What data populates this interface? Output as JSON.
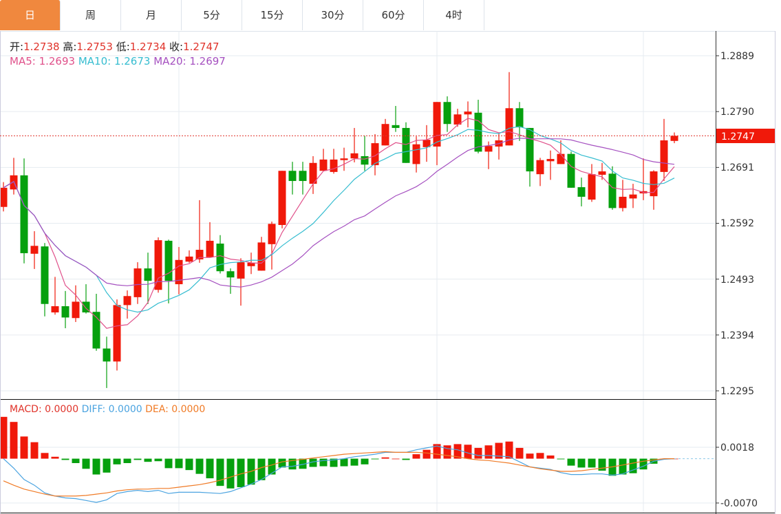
{
  "tabs": [
    {
      "label": "日",
      "active": true
    },
    {
      "label": "周"
    },
    {
      "label": "月"
    },
    {
      "label": "5分"
    },
    {
      "label": "15分"
    },
    {
      "label": "30分"
    },
    {
      "label": "60分"
    },
    {
      "label": "4时"
    }
  ],
  "ohlc_info": {
    "open_label": "开:",
    "open": "1.2738",
    "high_label": "高:",
    "high": "1.2753",
    "low_label": "低:",
    "low": "1.2734",
    "close_label": "收:",
    "close": "1.2747"
  },
  "ma_info": {
    "ma5": "MA5: 1.2693",
    "ma10": "MA10: 1.2673",
    "ma20": "MA20: 1.2697"
  },
  "macd_info": {
    "macd": "MACD: 0.0000",
    "diff": "DIFF: 0.0000",
    "dea": "DEA: 0.0000"
  },
  "colors": {
    "up": "#f0190a",
    "down": "#06a00e",
    "ma5": "#e0508a",
    "ma10": "#36bdd0",
    "ma20": "#a550c0",
    "diff": "#4aa3e0",
    "dea": "#f07a25",
    "tab_active": "#f0883e"
  },
  "chart_data": [
    {
      "type": "candlestick",
      "title": "",
      "y_ticks": [
        "1.2889",
        "1.2790",
        "1.2691",
        "1.2592",
        "1.2493",
        "1.2394",
        "1.2295"
      ],
      "ylim": [
        1.2295,
        1.2889
      ],
      "last_price_label": "1.2747",
      "grid": true,
      "ohlc": [
        [
          1.2621,
          1.2665,
          1.2613,
          1.2655
        ],
        [
          1.2652,
          1.2708,
          1.2643,
          1.2677
        ],
        [
          1.2677,
          1.2707,
          1.2521,
          1.2539
        ],
        [
          1.2538,
          1.2578,
          1.2511,
          1.2552
        ],
        [
          1.2551,
          1.2557,
          1.2427,
          1.2449
        ],
        [
          1.2434,
          1.2497,
          1.243,
          1.2445
        ],
        [
          1.2445,
          1.2472,
          1.2406,
          1.2425
        ],
        [
          1.2424,
          1.2482,
          1.2417,
          1.2453
        ],
        [
          1.2453,
          1.2484,
          1.2432,
          1.2434
        ],
        [
          1.2435,
          1.2467,
          1.2366,
          1.237
        ],
        [
          1.237,
          1.2391,
          1.23,
          1.2347
        ],
        [
          1.2347,
          1.2457,
          1.2331,
          1.2447
        ],
        [
          1.2447,
          1.2473,
          1.2423,
          1.2463
        ],
        [
          1.2461,
          1.2523,
          1.2449,
          1.2512
        ],
        [
          1.2512,
          1.254,
          1.2449,
          1.249
        ],
        [
          1.2474,
          1.2567,
          1.2469,
          1.2562
        ],
        [
          1.2561,
          1.2563,
          1.245,
          1.249
        ],
        [
          1.2484,
          1.255,
          1.2466,
          1.2527
        ],
        [
          1.2524,
          1.2544,
          1.2522,
          1.2533
        ],
        [
          1.2528,
          1.2633,
          1.2522,
          1.2545
        ],
        [
          1.2532,
          1.2594,
          1.2532,
          1.2561
        ],
        [
          1.2556,
          1.2571,
          1.2503,
          1.2507
        ],
        [
          1.2507,
          1.2512,
          1.2467,
          1.2496
        ],
        [
          1.2494,
          1.253,
          1.2446,
          1.2523
        ],
        [
          1.2516,
          1.254,
          1.2502,
          1.2522
        ],
        [
          1.2508,
          1.2568,
          1.2508,
          1.2558
        ],
        [
          1.2555,
          1.2595,
          1.251,
          1.2591
        ],
        [
          1.2589,
          1.2685,
          1.2583,
          1.2685
        ],
        [
          1.2685,
          1.2701,
          1.2643,
          1.2667
        ],
        [
          1.2685,
          1.2701,
          1.2643,
          1.2667
        ],
        [
          1.2662,
          1.2711,
          1.2644,
          1.2699
        ],
        [
          1.2685,
          1.2724,
          1.2685,
          1.2705
        ],
        [
          1.2683,
          1.2724,
          1.268,
          1.2705
        ],
        [
          1.2704,
          1.2726,
          1.2685,
          1.2707
        ],
        [
          1.2707,
          1.2761,
          1.27,
          1.2716
        ],
        [
          1.2711,
          1.2747,
          1.2685,
          1.2696
        ],
        [
          1.2695,
          1.275,
          1.2677,
          1.2734
        ],
        [
          1.273,
          1.2777,
          1.273,
          1.2768
        ],
        [
          1.2766,
          1.28,
          1.2754,
          1.2761
        ],
        [
          1.2761,
          1.2771,
          1.2699,
          1.2699
        ],
        [
          1.2697,
          1.2746,
          1.2682,
          1.2732
        ],
        [
          1.2727,
          1.2766,
          1.2701,
          1.274
        ],
        [
          1.2728,
          1.2807,
          1.2695,
          1.2807
        ],
        [
          1.2807,
          1.2817,
          1.2754,
          1.2768
        ],
        [
          1.2767,
          1.2795,
          1.2763,
          1.2785
        ],
        [
          1.2785,
          1.2808,
          1.2762,
          1.279
        ],
        [
          1.2788,
          1.2811,
          1.2716,
          1.2719
        ],
        [
          1.2719,
          1.2737,
          1.2688,
          1.2729
        ],
        [
          1.2728,
          1.2752,
          1.2705,
          1.2739
        ],
        [
          1.273,
          1.286,
          1.273,
          1.2796
        ],
        [
          1.2796,
          1.2807,
          1.2738,
          1.2762
        ],
        [
          1.2761,
          1.2761,
          1.2657,
          1.2684
        ],
        [
          1.2679,
          1.2708,
          1.2658,
          1.2704
        ],
        [
          1.2702,
          1.2721,
          1.2669,
          1.2706
        ],
        [
          1.2697,
          1.2739,
          1.2697,
          1.2715
        ],
        [
          1.2715,
          1.2719,
          1.2655,
          1.2655
        ],
        [
          1.2656,
          1.2673,
          1.2622,
          1.2639
        ],
        [
          1.2634,
          1.2697,
          1.263,
          1.2679
        ],
        [
          1.2678,
          1.2699,
          1.2669,
          1.2684
        ],
        [
          1.268,
          1.2693,
          1.2616,
          1.2619
        ],
        [
          1.2619,
          1.2669,
          1.2613,
          1.2639
        ],
        [
          1.2636,
          1.2662,
          1.2619,
          1.2643
        ],
        [
          1.2645,
          1.2707,
          1.2633,
          1.2649
        ],
        [
          1.264,
          1.2686,
          1.2616,
          1.2684
        ],
        [
          1.2683,
          1.2777,
          1.2667,
          1.2739
        ],
        [
          1.2738,
          1.2753,
          1.2734,
          1.2747
        ]
      ],
      "ma_periods": [
        5,
        10,
        20
      ],
      "series_names": [
        "MA5",
        "MA10",
        "MA20"
      ]
    },
    {
      "type": "bar+line",
      "title": "MACD",
      "y_ticks": [
        "0.0018",
        "-0.0070"
      ],
      "ylim": [
        -0.007,
        0.0018
      ],
      "macd": [
        0.0066,
        0.0058,
        0.0035,
        0.0026,
        0.0009,
        0.0003,
        -0.0002,
        -0.0007,
        -0.0016,
        -0.0025,
        -0.0022,
        -0.0009,
        -0.0007,
        -0.0002,
        -0.0005,
        -0.0004,
        -0.0015,
        -0.0015,
        -0.0018,
        -0.0024,
        -0.0031,
        -0.0043,
        -0.0047,
        -0.0045,
        -0.0041,
        -0.0034,
        -0.0025,
        -0.0014,
        -0.0017,
        -0.0016,
        -0.0013,
        -0.0012,
        -0.0013,
        -0.0012,
        -0.0011,
        -0.0009,
        -0.0001,
        0.0002,
        0,
        -0.0002,
        0.0007,
        0.0014,
        0.0023,
        0.0021,
        0.0023,
        0.0022,
        0.0017,
        0.0021,
        0.0025,
        0.0027,
        0.0017,
        0.0008,
        0.0009,
        0.0005,
        -0.0001,
        -0.0011,
        -0.0014,
        -0.0014,
        -0.0019,
        -0.0027,
        -0.0025,
        -0.0023,
        -0.0017,
        -0.0008,
        0,
        0
      ],
      "diff": [
        0,
        -0.0015,
        -0.0033,
        -0.0042,
        -0.0054,
        -0.0059,
        -0.0062,
        -0.0063,
        -0.0066,
        -0.0069,
        -0.0065,
        -0.0055,
        -0.0052,
        -0.005,
        -0.0052,
        -0.005,
        -0.0055,
        -0.0053,
        -0.0053,
        -0.0053,
        -0.0054,
        -0.0055,
        -0.0052,
        -0.0046,
        -0.004,
        -0.0033,
        -0.0023,
        -0.0013,
        -0.0012,
        -0.0009,
        -0.0005,
        -0.0003,
        -0.0002,
        0,
        0.0003,
        0.0005,
        0.0007,
        0.001,
        0.001,
        0.001,
        0.0014,
        0.0017,
        0.002,
        0.0016,
        0.0014,
        0.0009,
        0.0005,
        0.0005,
        0.0004,
        0.0003,
        -0.0005,
        -0.0013,
        -0.0015,
        -0.0017,
        -0.0022,
        -0.0025,
        -0.0025,
        -0.0024,
        -0.0024,
        -0.0026,
        -0.0024,
        -0.0018,
        -0.0012,
        -0.0004,
        -0.0001,
        0
      ],
      "dea": [
        -0.0035,
        -0.0042,
        -0.0048,
        -0.0052,
        -0.0056,
        -0.0059,
        -0.0059,
        -0.0059,
        -0.0058,
        -0.0056,
        -0.0054,
        -0.0051,
        -0.0049,
        -0.0048,
        -0.0048,
        -0.0047,
        -0.0047,
        -0.0045,
        -0.0043,
        -0.0041,
        -0.0038,
        -0.0034,
        -0.0029,
        -0.0024,
        -0.002,
        -0.0014,
        -0.001,
        -0.0005,
        -0.0003,
        -0.0001,
        0.0001,
        0.0003,
        0.0005,
        0.0007,
        0.0008,
        0.0009,
        0.001,
        0.0011,
        0.001,
        0.001,
        0.001,
        0.0009,
        0.0007,
        0.0005,
        0.0003,
        0,
        -0.0002,
        -0.0003,
        -0.0005,
        -0.0007,
        -0.001,
        -0.0013,
        -0.0016,
        -0.0018,
        -0.002,
        -0.002,
        -0.0019,
        -0.0017,
        -0.0015,
        -0.0013,
        -0.001,
        -0.0007,
        -0.0004,
        -0.0002,
        0,
        0
      ]
    }
  ]
}
